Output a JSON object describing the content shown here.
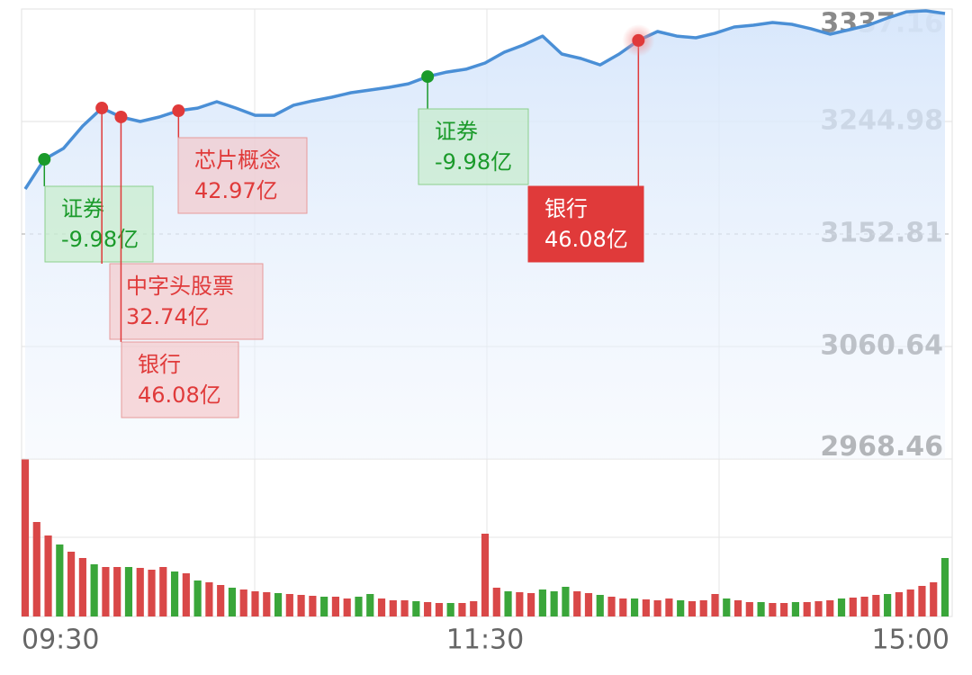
{
  "chart_data": {
    "type": "line",
    "categories": [
      "09:30",
      null,
      null,
      null,
      null,
      null,
      null,
      null,
      null,
      null,
      null,
      null,
      null,
      null,
      null,
      null,
      null,
      null,
      null,
      null,
      null,
      null,
      null,
      null,
      "11:30",
      null,
      null,
      null,
      null,
      null,
      null,
      null,
      null,
      null,
      null,
      null,
      null,
      null,
      null,
      null,
      null,
      null,
      null,
      null,
      null,
      null,
      null,
      null,
      "15:00"
    ],
    "values": [
      3189.7,
      3214.0,
      3222.9,
      3241.3,
      3256.0,
      3248.7,
      3245.0,
      3248.7,
      3253.8,
      3256.0,
      3261.2,
      3256.0,
      3250.1,
      3250.1,
      3258.3,
      3261.9,
      3264.9,
      3268.6,
      3270.8,
      3273.0,
      3275.9,
      3281.8,
      3285.5,
      3287.8,
      3292.9,
      3301.8,
      3307.7,
      3315.0,
      3300.3,
      3296.6,
      3291.4,
      3300.3,
      3311.4,
      3318.7,
      3315.0,
      3313.6,
      3317.3,
      3322.4,
      3323.9,
      3326.1,
      3324.6,
      3321.0,
      3316.5,
      3320.2,
      3323.9,
      3329.8,
      3334.9,
      3335.7,
      3333.5
    ],
    "color": "#4a8fd6",
    "ylim": [
      2968.46,
      3337.16
    ],
    "yticks": [
      2968.46,
      3060.64,
      3152.81,
      3244.98,
      3337.16
    ],
    "reference": 3152.81,
    "grid": true,
    "annotations": [
      {
        "index": 1,
        "color": "#1a9a2a",
        "highlight": false,
        "title": "证券",
        "amount": "-9.98亿"
      },
      {
        "index": 4,
        "color": "#e03a3a",
        "highlight": false,
        "title": "中字头股票",
        "amount": "32.74亿"
      },
      {
        "index": 5,
        "color": "#e03a3a",
        "highlight": false,
        "title": "银行",
        "amount": "46.08亿"
      },
      {
        "index": 8,
        "color": "#e03a3a",
        "highlight": false,
        "title": "芯片概念",
        "amount": "42.97亿"
      },
      {
        "index": 21,
        "color": "#1a9a2a",
        "highlight": false,
        "title": "证券",
        "amount": "-9.98亿"
      },
      {
        "index": 32,
        "color": "#e03a3a",
        "highlight": true,
        "title": "银行",
        "amount": "46.08亿"
      }
    ],
    "volume": {
      "values": [
        175,
        105,
        90,
        80,
        72,
        65,
        58,
        55,
        55,
        55,
        54,
        52,
        55,
        50,
        48,
        40,
        38,
        35,
        32,
        30,
        28,
        27,
        26,
        25,
        24,
        23,
        22,
        22,
        20,
        22,
        25,
        20,
        18,
        18,
        17,
        16,
        15,
        15,
        15,
        17,
        92,
        32,
        28,
        27,
        26,
        30,
        28,
        33,
        28,
        26,
        24,
        22,
        20,
        20,
        19,
        18,
        20,
        18,
        17,
        18,
        25,
        20,
        18,
        16,
        16,
        15,
        15,
        16,
        16,
        17,
        18,
        20,
        21,
        22,
        24,
        25,
        27,
        30,
        34,
        38,
        65
      ],
      "colors": [
        "#d94848",
        "#d94848",
        "#d94848",
        "#3aa63a",
        "#d94848",
        "#d94848",
        "#3aa63a",
        "#d94848",
        "#d94848",
        "#3aa63a",
        "#d94848",
        "#d94848",
        "#d94848",
        "#3aa63a",
        "#d94848",
        "#3aa63a",
        "#d94848",
        "#d94848",
        "#3aa63a",
        "#d94848",
        "#d94848",
        "#d94848",
        "#3aa63a",
        "#d94848",
        "#d94848",
        "#d94848",
        "#3aa63a",
        "#d94848",
        "#d94848",
        "#3aa63a",
        "#3aa63a",
        "#d94848",
        "#d94848",
        "#d94848",
        "#3aa63a",
        "#d94848",
        "#d94848",
        "#3aa63a",
        "#d94848",
        "#d94848",
        "#d94848",
        "#d94848",
        "#3aa63a",
        "#d94848",
        "#d94848",
        "#3aa63a",
        "#3aa63a",
        "#3aa63a",
        "#d94848",
        "#d94848",
        "#3aa63a",
        "#d94848",
        "#d94848",
        "#3aa63a",
        "#d94848",
        "#d94848",
        "#d94848",
        "#3aa63a",
        "#d94848",
        "#d94848",
        "#d94848",
        "#3aa63a",
        "#d94848",
        "#d94848",
        "#3aa63a",
        "#d94848",
        "#d94848",
        "#3aa63a",
        "#d94848",
        "#d94848",
        "#d94848",
        "#3aa63a",
        "#d94848",
        "#d94848",
        "#d94848",
        "#3aa63a",
        "#d94848",
        "#d94848",
        "#d94848",
        "#d94848",
        "#3aa63a"
      ]
    }
  }
}
